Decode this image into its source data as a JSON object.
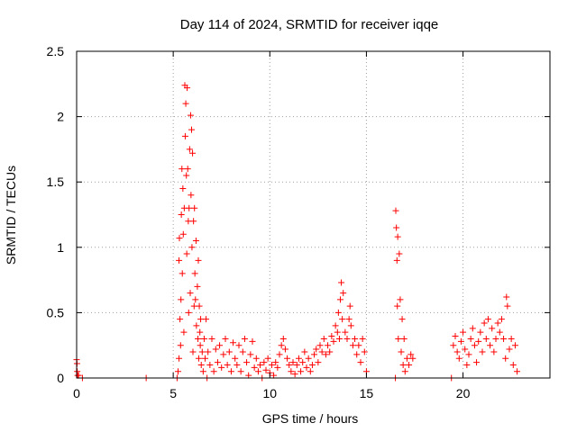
{
  "chart_data": {
    "type": "scatter",
    "title": "Day 114 of 2024, SRMTID for receiver iqqe",
    "xlabel": "GPS time / hours",
    "ylabel": "SRMTID / TECUs",
    "xlim": [
      0,
      24.5
    ],
    "ylim": [
      0,
      2.5
    ],
    "xticks": [
      0,
      5,
      10,
      15,
      20
    ],
    "xtick_labels": [
      "0",
      "5",
      "10",
      "15",
      "20"
    ],
    "yticks": [
      0,
      0.5,
      1,
      1.5,
      2,
      2.5
    ],
    "ytick_labels": [
      "0",
      "0.5",
      "1",
      "1.5",
      "2",
      "2.5"
    ],
    "grid": true,
    "marker": "+",
    "color": "#ff0000",
    "series": [
      {
        "name": "SRMTID",
        "points": [
          [
            0.0,
            0.14
          ],
          [
            0.02,
            0.11
          ],
          [
            0.03,
            0.05
          ],
          [
            0.05,
            0.02
          ],
          [
            0.1,
            0.02
          ],
          [
            0.3,
            0.0
          ],
          [
            3.6,
            0.0
          ],
          [
            5.2,
            0.0
          ],
          [
            5.25,
            0.05
          ],
          [
            5.3,
            0.15
          ],
          [
            5.3,
            0.9
          ],
          [
            5.32,
            1.07
          ],
          [
            5.35,
            0.45
          ],
          [
            5.38,
            0.25
          ],
          [
            5.4,
            0.6
          ],
          [
            5.42,
            1.25
          ],
          [
            5.45,
            1.6
          ],
          [
            5.47,
            0.8
          ],
          [
            5.5,
            1.45
          ],
          [
            5.52,
            1.1
          ],
          [
            5.55,
            0.35
          ],
          [
            5.57,
            1.3
          ],
          [
            5.6,
            2.24
          ],
          [
            5.62,
            1.85
          ],
          [
            5.65,
            2.1
          ],
          [
            5.68,
            1.55
          ],
          [
            5.7,
            0.95
          ],
          [
            5.72,
            2.22
          ],
          [
            5.75,
            1.6
          ],
          [
            5.78,
            1.2
          ],
          [
            5.8,
            0.5
          ],
          [
            5.82,
            1.3
          ],
          [
            5.85,
            1.75
          ],
          [
            5.88,
            0.65
          ],
          [
            5.9,
            2.01
          ],
          [
            5.92,
            1.4
          ],
          [
            5.95,
            1.9
          ],
          [
            5.97,
            1.0
          ],
          [
            6.0,
            1.72
          ],
          [
            6.02,
            0.2
          ],
          [
            6.05,
            1.2
          ],
          [
            6.08,
            0.55
          ],
          [
            6.1,
            1.3
          ],
          [
            6.12,
            0.8
          ],
          [
            6.15,
            0.6
          ],
          [
            6.18,
            1.05
          ],
          [
            6.2,
            0.4
          ],
          [
            6.25,
            0.7
          ],
          [
            6.28,
            0.3
          ],
          [
            6.3,
            0.9
          ],
          [
            6.32,
            0.15
          ],
          [
            6.35,
            0.55
          ],
          [
            6.38,
            0.35
          ],
          [
            6.4,
            0.25
          ],
          [
            6.42,
            0.45
          ],
          [
            6.45,
            0.1
          ],
          [
            6.5,
            0.2
          ],
          [
            6.55,
            0.05
          ],
          [
            6.6,
            0.3
          ],
          [
            6.65,
            0.15
          ],
          [
            6.7,
            0.45
          ],
          [
            6.75,
            0.0
          ],
          [
            6.8,
            0.2
          ],
          [
            6.9,
            0.1
          ],
          [
            7.0,
            0.3
          ],
          [
            7.1,
            0.05
          ],
          [
            7.2,
            0.22
          ],
          [
            7.3,
            0.12
          ],
          [
            7.4,
            0.25
          ],
          [
            7.5,
            0.08
          ],
          [
            7.6,
            0.18
          ],
          [
            7.7,
            0.3
          ],
          [
            7.8,
            0.1
          ],
          [
            7.9,
            0.2
          ],
          [
            8.0,
            0.05
          ],
          [
            8.1,
            0.27
          ],
          [
            8.2,
            0.15
          ],
          [
            8.3,
            0.1
          ],
          [
            8.4,
            0.25
          ],
          [
            8.5,
            0.05
          ],
          [
            8.6,
            0.2
          ],
          [
            8.7,
            0.3
          ],
          [
            8.8,
            0.12
          ],
          [
            8.9,
            0.02
          ],
          [
            9.0,
            0.18
          ],
          [
            9.1,
            0.28
          ],
          [
            9.2,
            0.08
          ],
          [
            9.3,
            0.15
          ],
          [
            9.4,
            0.05
          ],
          [
            9.5,
            0.1
          ],
          [
            9.6,
            0.0
          ],
          [
            9.7,
            0.12
          ],
          [
            9.8,
            0.06
          ],
          [
            9.9,
            0.15
          ],
          [
            10.0,
            0.04
          ],
          [
            10.1,
            0.1
          ],
          [
            10.2,
            0.02
          ],
          [
            10.3,
            0.12
          ],
          [
            10.4,
            0.08
          ],
          [
            10.5,
            0.18
          ],
          [
            10.6,
            0.25
          ],
          [
            10.7,
            0.3
          ],
          [
            10.8,
            0.22
          ],
          [
            10.9,
            0.15
          ],
          [
            11.0,
            0.1
          ],
          [
            11.1,
            0.05
          ],
          [
            11.2,
            0.12
          ],
          [
            11.3,
            0.03
          ],
          [
            11.4,
            0.1
          ],
          [
            11.5,
            0.15
          ],
          [
            11.6,
            0.05
          ],
          [
            11.7,
            0.12
          ],
          [
            11.8,
            0.2
          ],
          [
            11.9,
            0.08
          ],
          [
            12.0,
            0.15
          ],
          [
            12.1,
            0.05
          ],
          [
            12.2,
            0.1
          ],
          [
            12.3,
            0.18
          ],
          [
            12.4,
            0.22
          ],
          [
            12.5,
            0.12
          ],
          [
            12.6,
            0.25
          ],
          [
            12.7,
            0.2
          ],
          [
            12.8,
            0.3
          ],
          [
            12.9,
            0.18
          ],
          [
            13.0,
            0.25
          ],
          [
            13.1,
            0.2
          ],
          [
            13.2,
            0.32
          ],
          [
            13.3,
            0.28
          ],
          [
            13.4,
            0.4
          ],
          [
            13.5,
            0.35
          ],
          [
            13.55,
            0.5
          ],
          [
            13.6,
            0.3
          ],
          [
            13.65,
            0.6
          ],
          [
            13.7,
            0.73
          ],
          [
            13.75,
            0.45
          ],
          [
            13.8,
            0.65
          ],
          [
            13.9,
            0.35
          ],
          [
            14.0,
            0.3
          ],
          [
            14.1,
            0.45
          ],
          [
            14.15,
            0.55
          ],
          [
            14.2,
            0.4
          ],
          [
            14.3,
            0.25
          ],
          [
            14.4,
            0.3
          ],
          [
            14.5,
            0.18
          ],
          [
            14.6,
            0.25
          ],
          [
            14.7,
            0.12
          ],
          [
            14.8,
            0.3
          ],
          [
            14.9,
            0.2
          ],
          [
            15.0,
            0.05
          ],
          [
            16.5,
            0.0
          ],
          [
            16.52,
            1.28
          ],
          [
            16.55,
            1.15
          ],
          [
            16.58,
            0.9
          ],
          [
            16.6,
            0.55
          ],
          [
            16.62,
            1.08
          ],
          [
            16.65,
            0.3
          ],
          [
            16.7,
            0.95
          ],
          [
            16.75,
            0.6
          ],
          [
            16.8,
            0.2
          ],
          [
            16.85,
            0.45
          ],
          [
            16.9,
            0.1
          ],
          [
            16.95,
            0.3
          ],
          [
            17.0,
            0.05
          ],
          [
            17.1,
            0.15
          ],
          [
            17.2,
            0.1
          ],
          [
            17.3,
            0.18
          ],
          [
            17.4,
            0.15
          ],
          [
            19.4,
            0.0
          ],
          [
            19.5,
            0.25
          ],
          [
            19.6,
            0.32
          ],
          [
            19.7,
            0.2
          ],
          [
            19.8,
            0.15
          ],
          [
            19.9,
            0.28
          ],
          [
            20.0,
            0.35
          ],
          [
            20.1,
            0.22
          ],
          [
            20.2,
            0.1
          ],
          [
            20.3,
            0.18
          ],
          [
            20.4,
            0.3
          ],
          [
            20.5,
            0.38
          ],
          [
            20.6,
            0.25
          ],
          [
            20.7,
            0.12
          ],
          [
            20.8,
            0.28
          ],
          [
            20.9,
            0.35
          ],
          [
            21.0,
            0.2
          ],
          [
            21.1,
            0.42
          ],
          [
            21.2,
            0.3
          ],
          [
            21.3,
            0.45
          ],
          [
            21.4,
            0.25
          ],
          [
            21.5,
            0.38
          ],
          [
            21.6,
            0.2
          ],
          [
            21.7,
            0.3
          ],
          [
            21.8,
            0.42
          ],
          [
            21.9,
            0.35
          ],
          [
            22.0,
            0.45
          ],
          [
            22.1,
            0.3
          ],
          [
            22.2,
            0.15
          ],
          [
            22.25,
            0.62
          ],
          [
            22.3,
            0.55
          ],
          [
            22.4,
            0.22
          ],
          [
            22.5,
            0.3
          ],
          [
            22.6,
            0.1
          ],
          [
            22.7,
            0.25
          ],
          [
            22.8,
            0.05
          ]
        ]
      }
    ]
  }
}
